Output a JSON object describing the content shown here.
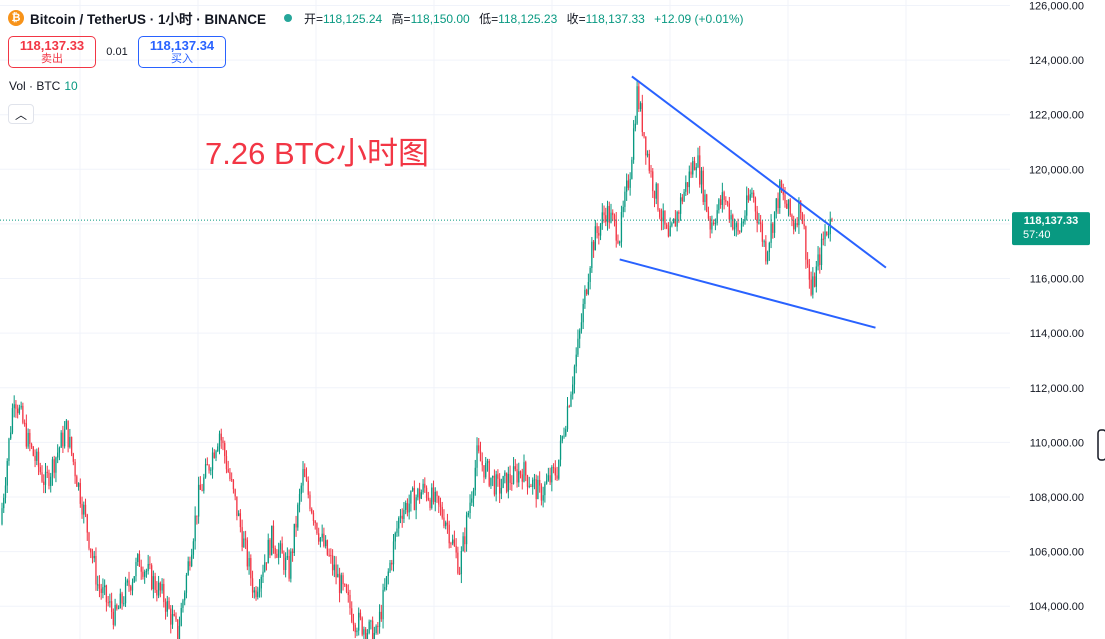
{
  "header": {
    "coin_icon": "bitcoin-icon",
    "symbol": "Bitcoin / TetherUS · 1小时 · BINANCE",
    "open_label": "开=",
    "open": "118,125.24",
    "high_label": "高=",
    "high": "118,150.00",
    "low_label": "低=",
    "low": "118,125.23",
    "close_label": "收=",
    "close": "118,137.33",
    "change": "+12.09 (+0.01%)"
  },
  "trade": {
    "sell_price": "118,137.33",
    "sell_label": "卖出",
    "spread": "0.01",
    "buy_price": "118,137.34",
    "buy_label": "买入"
  },
  "volume": {
    "label": "Vol · BTC",
    "value": "10"
  },
  "annotation": "7.26 BTC小时图",
  "price_tag": {
    "price": "118,137.33",
    "countdown": "57:40"
  },
  "colors": {
    "up": "#089981",
    "down": "#f23645",
    "trendline": "#2962ff"
  },
  "chart_data": {
    "type": "candlestick",
    "ylim": [
      102800,
      126200
    ],
    "y_ticks": [
      "104,000.00",
      "106,000.00",
      "108,000.00",
      "110,000.00",
      "112,000.00",
      "114,000.00",
      "116,000.00",
      "118,000.00",
      "120,000.00",
      "122,000.00",
      "124,000.00",
      "126,000.00"
    ],
    "y_tick_values": [
      104000,
      106000,
      108000,
      110000,
      112000,
      114000,
      116000,
      118000,
      120000,
      122000,
      124000,
      126000
    ],
    "current_price": 118137.33,
    "segments": [
      {
        "from": 0,
        "to": 8,
        "start": 107000,
        "end": 111800
      },
      {
        "from": 8,
        "to": 16,
        "start": 111800,
        "end": 110000
      },
      {
        "from": 16,
        "to": 26,
        "start": 110000,
        "end": 108500
      },
      {
        "from": 26,
        "to": 38,
        "start": 108500,
        "end": 110500
      },
      {
        "from": 38,
        "to": 48,
        "start": 110500,
        "end": 107500
      },
      {
        "from": 48,
        "to": 56,
        "start": 107500,
        "end": 104800
      },
      {
        "from": 56,
        "to": 66,
        "start": 104800,
        "end": 103600
      },
      {
        "from": 66,
        "to": 80,
        "start": 103600,
        "end": 105700
      },
      {
        "from": 80,
        "to": 94,
        "start": 105700,
        "end": 104300
      },
      {
        "from": 94,
        "to": 102,
        "start": 104300,
        "end": 103000
      },
      {
        "from": 102,
        "to": 114,
        "start": 103000,
        "end": 108000
      },
      {
        "from": 114,
        "to": 126,
        "start": 108000,
        "end": 110400
      },
      {
        "from": 126,
        "to": 136,
        "start": 110400,
        "end": 107500
      },
      {
        "from": 136,
        "to": 146,
        "start": 107500,
        "end": 104500
      },
      {
        "from": 146,
        "to": 156,
        "start": 104500,
        "end": 106500
      },
      {
        "from": 156,
        "to": 166,
        "start": 106500,
        "end": 105300
      },
      {
        "from": 166,
        "to": 174,
        "start": 105300,
        "end": 108800
      },
      {
        "from": 174,
        "to": 184,
        "start": 108800,
        "end": 106500
      },
      {
        "from": 184,
        "to": 194,
        "start": 106500,
        "end": 105000
      },
      {
        "from": 194,
        "to": 204,
        "start": 105000,
        "end": 103500
      },
      {
        "from": 204,
        "to": 216,
        "start": 103500,
        "end": 102900
      },
      {
        "from": 216,
        "to": 230,
        "start": 102900,
        "end": 107500
      },
      {
        "from": 230,
        "to": 244,
        "start": 107500,
        "end": 108300
      },
      {
        "from": 244,
        "to": 256,
        "start": 108300,
        "end": 107200
      },
      {
        "from": 256,
        "to": 264,
        "start": 107200,
        "end": 105400
      },
      {
        "from": 264,
        "to": 274,
        "start": 105400,
        "end": 109500
      },
      {
        "from": 274,
        "to": 286,
        "start": 109500,
        "end": 108300
      },
      {
        "from": 286,
        "to": 300,
        "start": 108300,
        "end": 109000
      },
      {
        "from": 300,
        "to": 310,
        "start": 109000,
        "end": 108100
      },
      {
        "from": 310,
        "to": 320,
        "start": 108100,
        "end": 109000
      },
      {
        "from": 320,
        "to": 326,
        "start": 109000,
        "end": 111300
      },
      {
        "from": 326,
        "to": 332,
        "start": 111300,
        "end": 113500
      },
      {
        "from": 332,
        "to": 340,
        "start": 113500,
        "end": 117200
      },
      {
        "from": 340,
        "to": 348,
        "start": 117200,
        "end": 118500
      },
      {
        "from": 348,
        "to": 356,
        "start": 118500,
        "end": 117600
      },
      {
        "from": 356,
        "to": 362,
        "start": 117600,
        "end": 120000
      },
      {
        "from": 362,
        "to": 366,
        "start": 120000,
        "end": 122800
      },
      {
        "from": 366,
        "to": 374,
        "start": 122800,
        "end": 119800
      },
      {
        "from": 374,
        "to": 384,
        "start": 119800,
        "end": 117300
      },
      {
        "from": 384,
        "to": 392,
        "start": 117300,
        "end": 119000
      },
      {
        "from": 392,
        "to": 400,
        "start": 119000,
        "end": 120500
      },
      {
        "from": 400,
        "to": 408,
        "start": 120500,
        "end": 118000
      },
      {
        "from": 408,
        "to": 416,
        "start": 118000,
        "end": 119000
      },
      {
        "from": 416,
        "to": 424,
        "start": 119000,
        "end": 117600
      },
      {
        "from": 424,
        "to": 432,
        "start": 117600,
        "end": 119200
      },
      {
        "from": 432,
        "to": 440,
        "start": 119200,
        "end": 117000
      },
      {
        "from": 440,
        "to": 448,
        "start": 117000,
        "end": 119200
      },
      {
        "from": 448,
        "to": 456,
        "start": 119200,
        "end": 118000
      },
      {
        "from": 456,
        "to": 460,
        "start": 118000,
        "end": 118800
      },
      {
        "from": 460,
        "to": 466,
        "start": 118800,
        "end": 115400
      },
      {
        "from": 466,
        "to": 474,
        "start": 115400,
        "end": 117700
      },
      {
        "from": 474,
        "to": 478,
        "start": 117700,
        "end": 118137
      }
    ],
    "trendlines": [
      {
        "from": {
          "bar": 362,
          "price": 123400
        },
        "to": {
          "bar": 508,
          "price": 116400
        }
      },
      {
        "from": {
          "bar": 355,
          "price": 116700
        },
        "to": {
          "bar": 502,
          "price": 114200
        }
      }
    ]
  }
}
